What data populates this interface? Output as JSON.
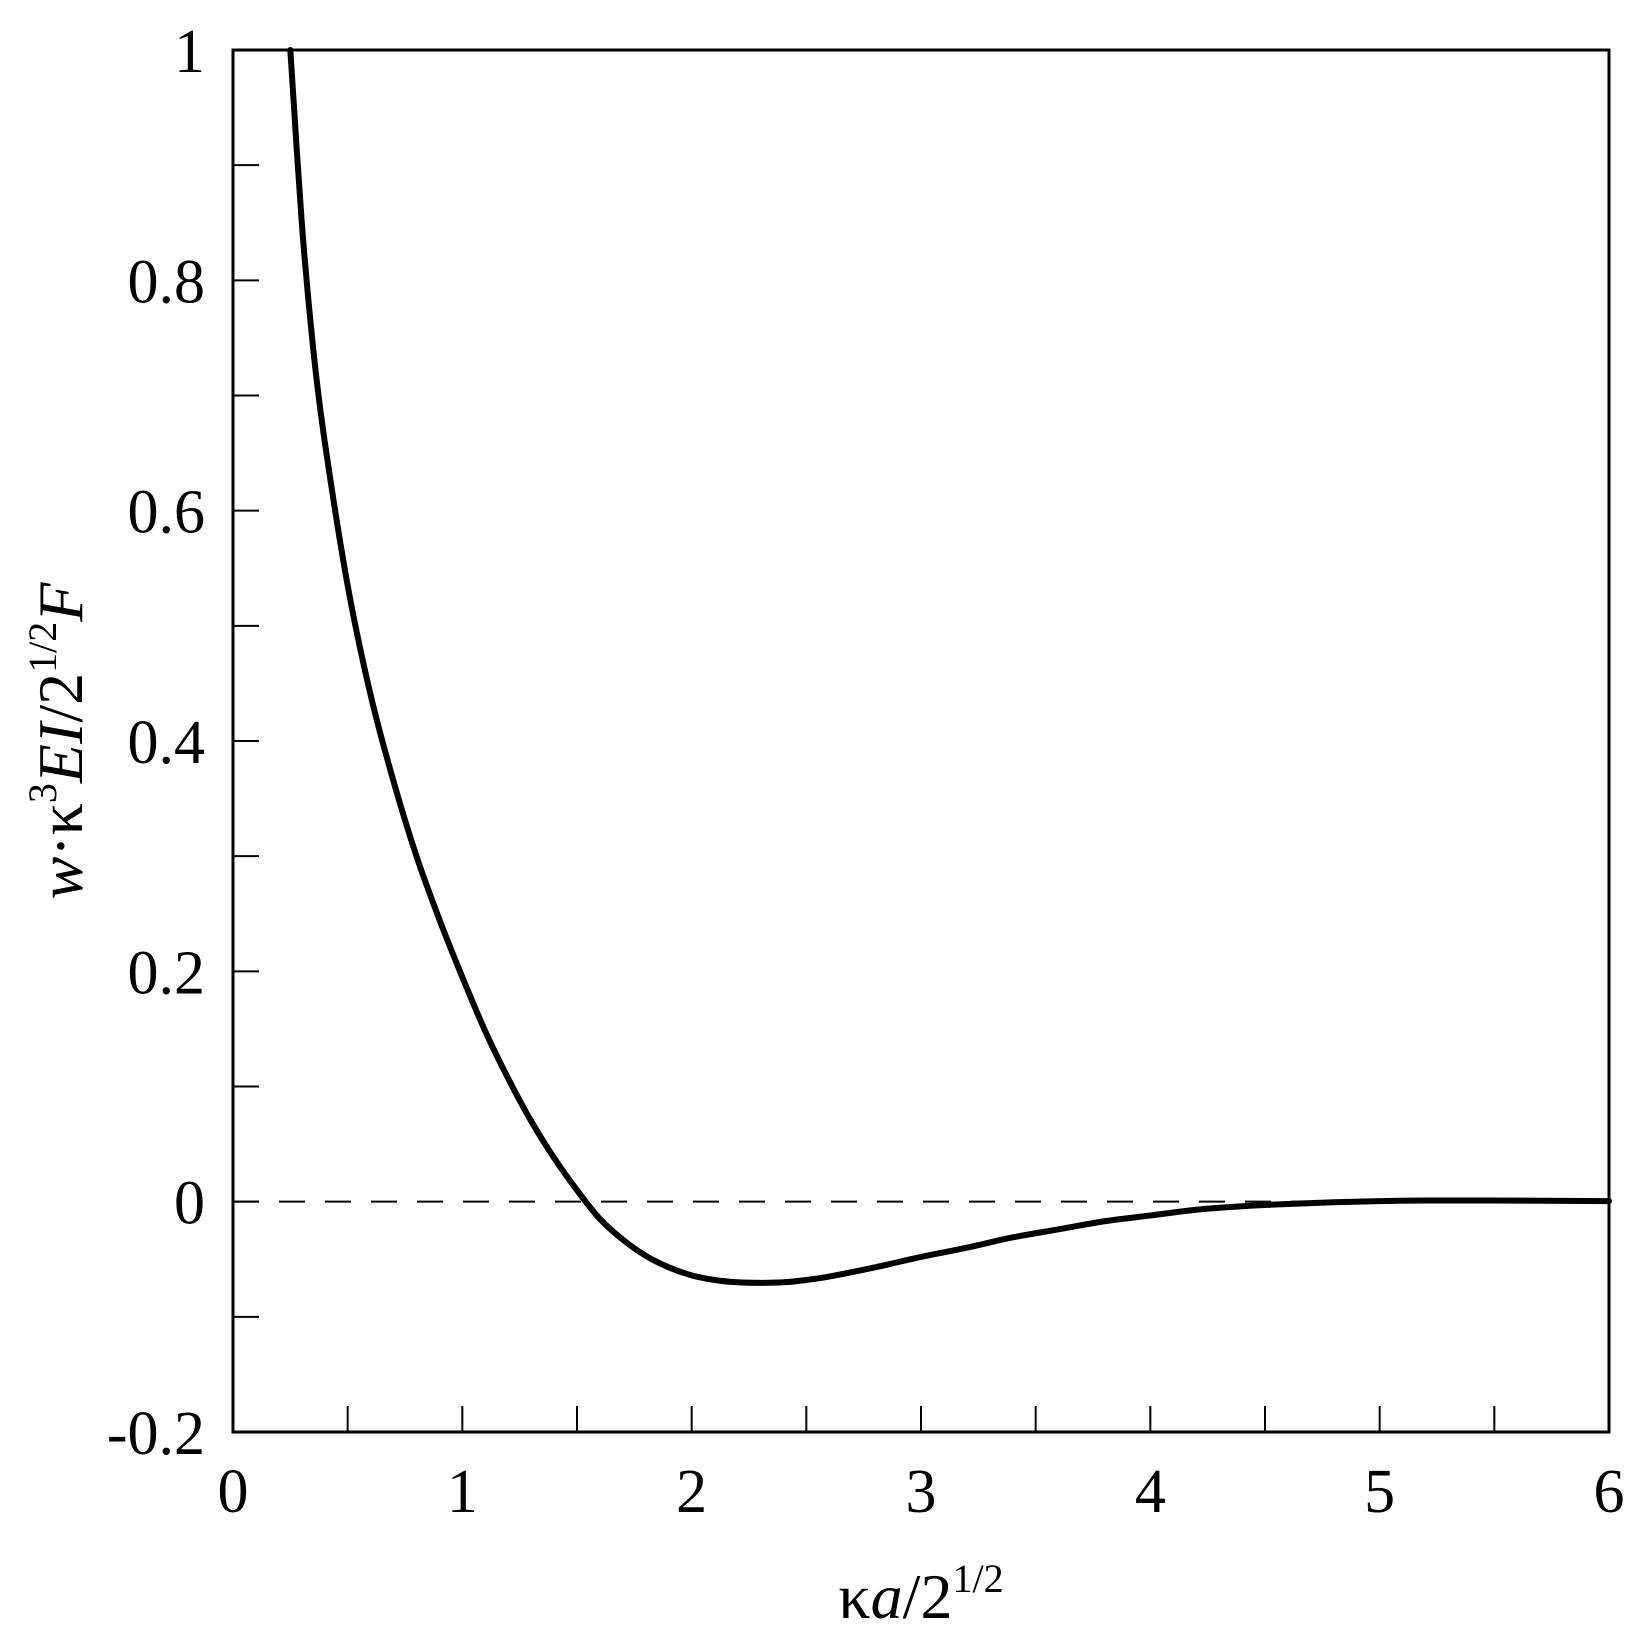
{
  "chart_data": {
    "type": "line",
    "title": "",
    "xlabel": {
      "kappa": "κ",
      "var": "a",
      "slash": "/",
      "base": "2",
      "exp": "1/2"
    },
    "ylabel": {
      "w": "w",
      "dot": "·",
      "kappa": "κ",
      "kexp": "3",
      "EI": "EI",
      "slash": "/",
      "base": "2",
      "exp": "1/2",
      "F": "F"
    },
    "xlim": [
      0,
      6
    ],
    "ylim": [
      -0.2,
      1
    ],
    "x_ticks": [
      "0",
      "1",
      "2",
      "3",
      "4",
      "5",
      "6"
    ],
    "y_ticks": [
      "-0.2",
      "0",
      "0.2",
      "0.4",
      "0.6",
      "0.8",
      "1"
    ],
    "x_minor_step": 0.5,
    "y_minor_step": 0.1,
    "grid": false,
    "reference_line": {
      "y": 0,
      "style": "dashed"
    },
    "series": [
      {
        "style": "solid",
        "color": "#000000",
        "x": [
          0.25,
          0.3,
          0.35,
          0.4,
          0.5,
          0.6,
          0.7,
          0.8,
          0.9,
          1.0,
          1.1,
          1.2,
          1.3,
          1.4,
          1.5,
          1.6,
          1.7,
          1.8,
          1.9,
          2.0,
          2.1,
          2.2,
          2.3,
          2.4,
          2.5,
          2.6,
          2.8,
          3.0,
          3.2,
          3.4,
          3.6,
          3.8,
          4.0,
          4.2,
          4.4,
          4.6,
          4.8,
          5.0,
          5.2,
          5.5,
          5.8,
          6.0
        ],
        "y": [
          1.0,
          0.85,
          0.74,
          0.66,
          0.535,
          0.44,
          0.365,
          0.3,
          0.245,
          0.195,
          0.148,
          0.107,
          0.07,
          0.038,
          0.01,
          -0.015,
          -0.033,
          -0.047,
          -0.057,
          -0.064,
          -0.068,
          -0.07,
          -0.0705,
          -0.07,
          -0.068,
          -0.065,
          -0.057,
          -0.048,
          -0.04,
          -0.031,
          -0.024,
          -0.017,
          -0.012,
          -0.007,
          -0.004,
          -0.002,
          -0.0005,
          0.0005,
          0.001,
          0.001,
          0.0007,
          0.0005
        ]
      }
    ]
  }
}
